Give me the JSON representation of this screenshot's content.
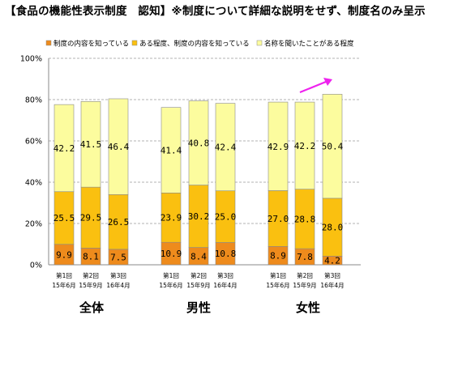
{
  "colors": {
    "s1": "#EE8B1C",
    "s2": "#FAC010",
    "s3": "#FCFC9E",
    "bar_stroke": "#8a8a8a",
    "grid": "#9a9a9a",
    "arrow": "#EE22EE"
  },
  "chart_data": {
    "type": "bar",
    "stacked": true,
    "title": "【食品の機能性表示制度　認知】※制度について詳細な説明をせず、制度名のみ呈示",
    "ylim": [
      0,
      100
    ],
    "yticks": [
      "0%",
      "20%",
      "40%",
      "60%",
      "80%",
      "100%"
    ],
    "grid": true,
    "legend_position": "top",
    "series": [
      {
        "name": "制度の内容を知っている"
      },
      {
        "name": "ある程度、制度の内容を知っている"
      },
      {
        "name": "名称を聞いたことがある程度"
      }
    ],
    "groups": [
      {
        "label": "全体",
        "bars": [
          {
            "round": "第1回",
            "date": "15年6月",
            "values": [
              9.9,
              25.5,
              42.2
            ]
          },
          {
            "round": "第2回",
            "date": "15年9月",
            "values": [
              8.1,
              29.5,
              41.5
            ]
          },
          {
            "round": "第3回",
            "date": "16年4月",
            "values": [
              7.5,
              26.5,
              46.4
            ]
          }
        ]
      },
      {
        "label": "男性",
        "bars": [
          {
            "round": "第1回",
            "date": "15年6月",
            "values": [
              10.9,
              23.9,
              41.4
            ]
          },
          {
            "round": "第2回",
            "date": "15年9月",
            "values": [
              8.4,
              30.2,
              40.8
            ]
          },
          {
            "round": "第3回",
            "date": "16年4月",
            "values": [
              10.8,
              25.0,
              42.4
            ]
          }
        ]
      },
      {
        "label": "女性",
        "bars": [
          {
            "round": "第1回",
            "date": "15年6月",
            "values": [
              8.9,
              27.0,
              42.9
            ]
          },
          {
            "round": "第2回",
            "date": "15年9月",
            "values": [
              7.8,
              28.8,
              42.2
            ]
          },
          {
            "round": "第3回",
            "date": "16年4月",
            "values": [
              4.2,
              28.0,
              50.4
            ]
          }
        ]
      }
    ]
  }
}
